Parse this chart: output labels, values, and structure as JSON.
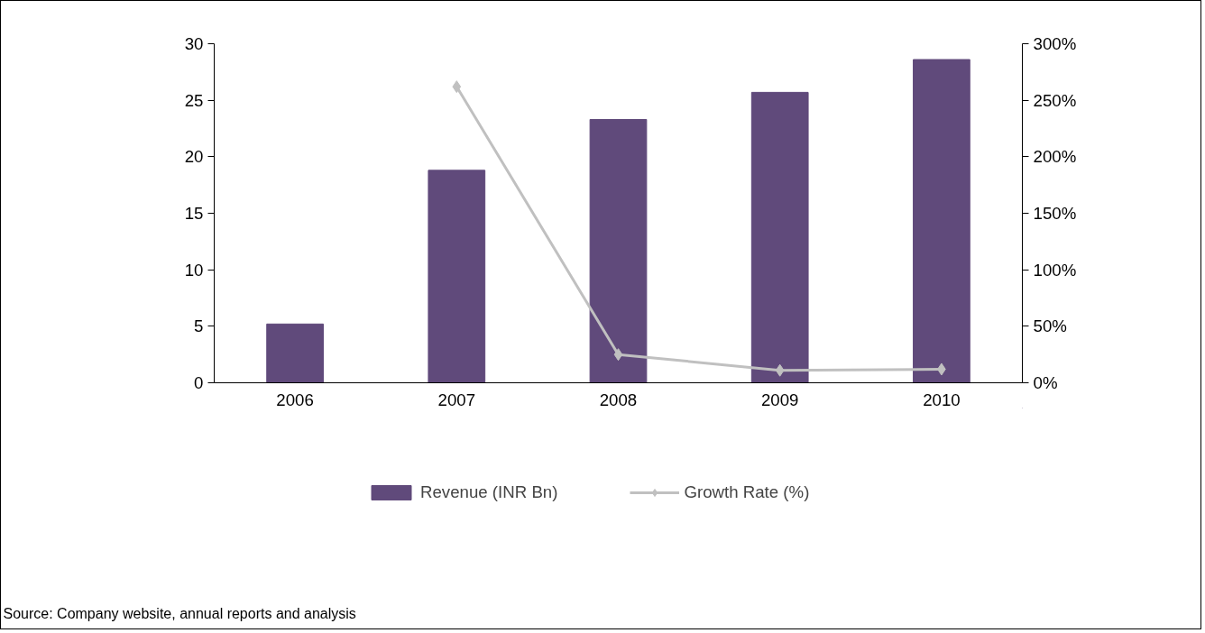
{
  "chart_data": {
    "type": "bar",
    "categories": [
      "2006",
      "2007",
      "2008",
      "2009",
      "2010"
    ],
    "series": [
      {
        "name": "Revenue (INR Bn)",
        "color": "#604a7b",
        "values": [
          5.2,
          18.8,
          23.3,
          25.7,
          28.6
        ]
      },
      {
        "name": "Growth Rate (%)",
        "type": "line",
        "color": "#c0c0c0",
        "axis": "y2",
        "marker": "diamond",
        "values": [
          null,
          262,
          25,
          11,
          12
        ]
      }
    ],
    "ylim": [
      0,
      30
    ],
    "yticks": [
      0,
      5,
      10,
      15,
      20,
      25,
      30
    ],
    "y2lim": [
      0,
      300
    ],
    "y2ticks": [
      {
        "value": 0,
        "label": "0%"
      },
      {
        "value": 50,
        "label": "50%"
      },
      {
        "value": 100,
        "label": "100%"
      },
      {
        "value": 150,
        "label": "150%"
      },
      {
        "value": 200,
        "label": "200%"
      },
      {
        "value": 250,
        "label": "250%"
      },
      {
        "value": 300,
        "label": "300%"
      }
    ],
    "grid": false,
    "legend": "bottom",
    "annotations": [
      "Source: Company website, annual reports and analysis"
    ]
  }
}
